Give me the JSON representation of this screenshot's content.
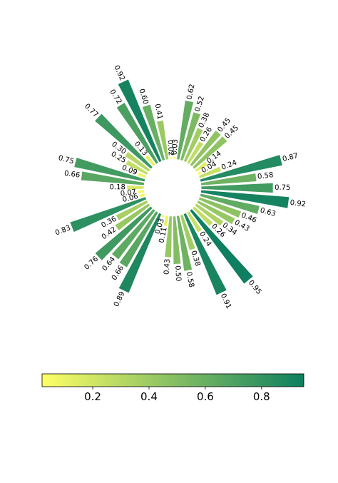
{
  "chart_data": {
    "type": "bar",
    "subtype": "polar-radial-bar",
    "title": "",
    "xlabel": "",
    "ylabel": "",
    "values": [
      0.02,
      0.41,
      0.6,
      0.92,
      0.72,
      0.13,
      0.77,
      0.3,
      0.25,
      0.09,
      0.75,
      0.66,
      0.18,
      0.07,
      0.06,
      0.83,
      0.36,
      0.42,
      0.76,
      0.64,
      0.66,
      0.89,
      0.03,
      0.11,
      0.43,
      0.5,
      0.58,
      0.38,
      0.91,
      0.24,
      0.95,
      0.26,
      0.34,
      0.43,
      0.46,
      0.63,
      0.92,
      0.75,
      0.58,
      0.87,
      0.24,
      0.04,
      0.14,
      0.45,
      0.45,
      0.26,
      0.38,
      0.52,
      0.62,
      0.03
    ],
    "value_labels": [
      "0.02",
      "0.41",
      "0.60",
      "0.92",
      "0.72",
      "0.13",
      "0.77",
      "0.30",
      "0.25",
      "0.09",
      "0.75",
      "0.66",
      "0.18",
      "0.07",
      "0.06",
      "0.83",
      "0.36",
      "0.42",
      "0.76",
      "0.64",
      "0.66",
      "0.89",
      "0.03",
      "0.11",
      "0.43",
      "0.50",
      "0.58",
      "0.38",
      "0.91",
      "0.24",
      "0.95",
      "0.26",
      "0.34",
      "0.43",
      "0.46",
      "0.63",
      "0.92",
      "0.75",
      "0.58",
      "0.87",
      "0.24",
      "0.04",
      "0.14",
      "0.45",
      "0.45",
      "0.26",
      "0.38",
      "0.52",
      "0.62",
      "0.03"
    ],
    "direction": "counter-clockwise from top",
    "colormap": [
      "#ffff66",
      "#0e7f60"
    ],
    "colorbar": {
      "orientation": "horizontal",
      "placement": "bottom",
      "range": [
        0.02,
        0.95
      ],
      "ticks": [
        "0.2",
        "0.4",
        "0.6",
        "0.8"
      ]
    }
  }
}
